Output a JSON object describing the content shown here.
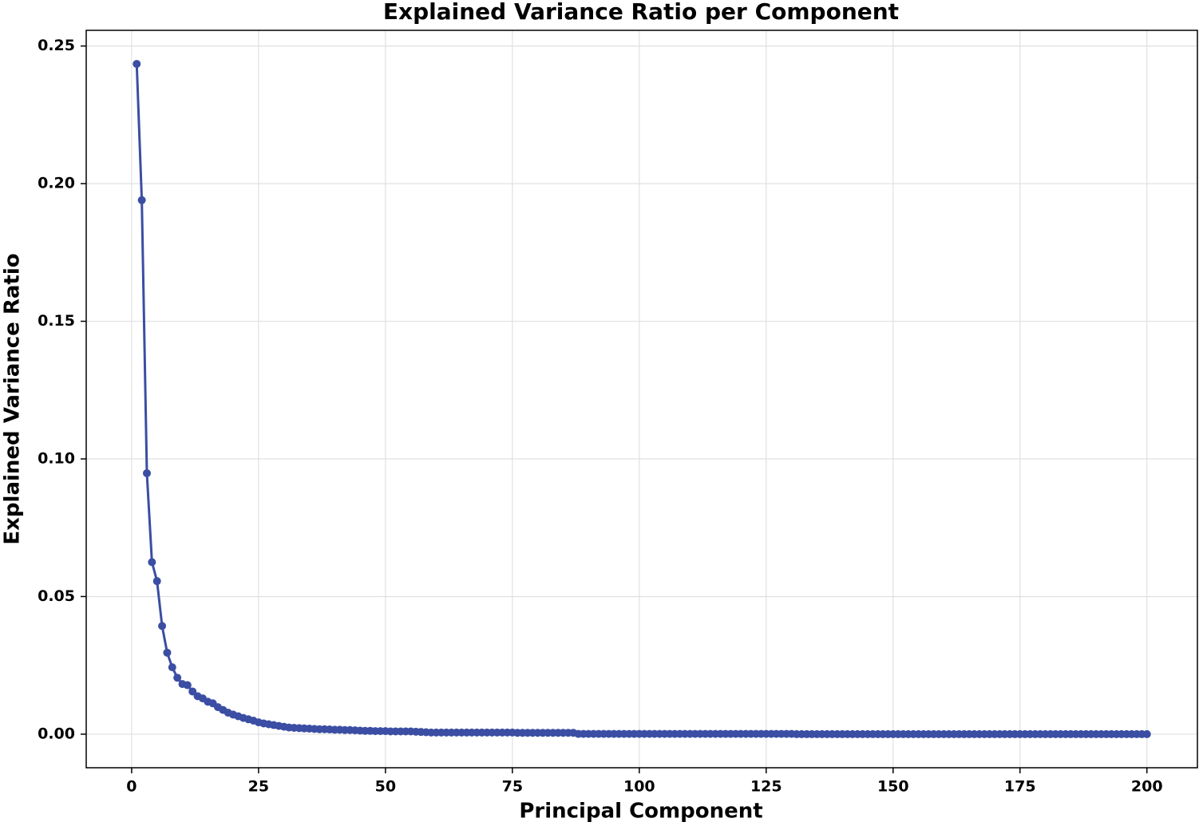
{
  "chart_data": {
    "type": "line",
    "title": "Explained Variance Ratio per Component",
    "xlabel": "Principal Component",
    "ylabel": "Explained Variance Ratio",
    "x": [
      1,
      2,
      3,
      4,
      5,
      6,
      7,
      8,
      9,
      10,
      11,
      12,
      13,
      14,
      15,
      16,
      17,
      18,
      19,
      20,
      21,
      22,
      23,
      24,
      25,
      26,
      27,
      28,
      29,
      30,
      31,
      32,
      33,
      34,
      35,
      36,
      37,
      38,
      39,
      40,
      41,
      42,
      43,
      44,
      45,
      46,
      47,
      48,
      49,
      50,
      51,
      52,
      53,
      54,
      55,
      56,
      57,
      58,
      59,
      60,
      61,
      62,
      63,
      64,
      65,
      66,
      67,
      68,
      69,
      70,
      71,
      72,
      73,
      74,
      75,
      76,
      77,
      78,
      79,
      80,
      81,
      82,
      83,
      84,
      85,
      86,
      87,
      88,
      89,
      90,
      91,
      92,
      93,
      94,
      95,
      96,
      97,
      98,
      99,
      100,
      101,
      102,
      103,
      104,
      105,
      106,
      107,
      108,
      109,
      110,
      111,
      112,
      113,
      114,
      115,
      116,
      117,
      118,
      119,
      120,
      121,
      122,
      123,
      124,
      125,
      126,
      127,
      128,
      129,
      130,
      131,
      132,
      133,
      134,
      135,
      136,
      137,
      138,
      139,
      140,
      141,
      142,
      143,
      144,
      145,
      146,
      147,
      148,
      149,
      150,
      151,
      152,
      153,
      154,
      155,
      156,
      157,
      158,
      159,
      160,
      161,
      162,
      163,
      164,
      165,
      166,
      167,
      168,
      169,
      170,
      171,
      172,
      173,
      174,
      175,
      176,
      177,
      178,
      179,
      180,
      181,
      182,
      183,
      184,
      185,
      186,
      187,
      188,
      189,
      190,
      191,
      192,
      193,
      194,
      195,
      196,
      197,
      198,
      199,
      200
    ],
    "series": [
      {
        "color": "#3b4ea3",
        "values": [
          0.2435,
          0.194,
          0.0948,
          0.0625,
          0.0556,
          0.0393,
          0.0296,
          0.0243,
          0.0205,
          0.0182,
          0.0178,
          0.0155,
          0.0138,
          0.013,
          0.0118,
          0.0112,
          0.0098,
          0.0088,
          0.0078,
          0.0071,
          0.0065,
          0.0059,
          0.0054,
          0.0049,
          0.0043,
          0.0039,
          0.0036,
          0.0033,
          0.003,
          0.0027,
          0.0024,
          0.0023,
          0.0022,
          0.0021,
          0.002,
          0.0019,
          0.0018,
          0.0018,
          0.0017,
          0.0016,
          0.0016,
          0.0015,
          0.0015,
          0.0014,
          0.0013,
          0.0012,
          0.0012,
          0.0011,
          0.0011,
          0.0011,
          0.001,
          0.001,
          0.001,
          0.001,
          0.001,
          0.0009,
          0.0008,
          0.0007,
          0.0006,
          0.0006,
          0.0006,
          0.0006,
          0.0006,
          0.0006,
          0.0006,
          0.0006,
          0.0006,
          0.0006,
          0.0006,
          0.0006,
          0.0006,
          0.0006,
          0.0006,
          0.0006,
          0.0006,
          0.0005,
          0.0005,
          0.0005,
          0.0005,
          0.0005,
          0.0005,
          0.0005,
          0.0005,
          0.0005,
          0.0005,
          0.0005,
          0.0005,
          0.0001,
          0.0001,
          0.0001,
          0.0001,
          0.0001,
          0.0001,
          0.0001,
          0.0001,
          0.0001,
          0.0001,
          0.0001,
          0.0001,
          0.0001,
          0.0001,
          0.0001,
          0.0001,
          0.0001,
          0.0001,
          0.0001,
          0.0001,
          0.0001,
          0.0001,
          0.0001,
          0.0001,
          0.0001,
          0.0001,
          0.0001,
          0.0001,
          0.0001,
          0.0001,
          0.0001,
          0.0001,
          0.0001,
          0.0001,
          0.0001,
          0.0001,
          0.0001,
          0.0001,
          0.0001,
          0.0001,
          0.0001,
          0.0001,
          0.0001,
          0,
          0,
          0,
          0,
          0,
          0,
          0,
          0,
          0,
          0,
          0,
          0,
          0,
          0,
          0,
          0,
          0,
          0,
          0,
          0,
          0,
          0,
          0,
          0,
          0,
          0,
          0,
          0,
          0,
          0,
          0,
          0,
          0,
          0,
          0,
          0,
          0,
          0,
          0,
          0,
          0,
          0,
          0,
          0,
          0,
          0,
          0,
          0,
          0,
          0,
          0,
          0,
          0,
          0,
          0,
          0,
          0,
          0,
          0,
          0,
          0,
          0,
          0,
          0,
          0,
          0,
          0,
          0,
          0,
          0
        ]
      }
    ],
    "xlim": [
      -8.95,
      209.95
    ],
    "ylim": [
      -0.0122,
      0.2557
    ],
    "xticks": [
      0,
      25,
      50,
      75,
      100,
      125,
      150,
      175,
      200
    ],
    "yticks": [
      {
        "value": 0,
        "label": "0.00"
      },
      0.05,
      {
        "value": 0.1,
        "label": "0.10"
      },
      0.15,
      {
        "value": 0.2,
        "label": "0.20"
      },
      0.25
    ],
    "grid": true
  }
}
